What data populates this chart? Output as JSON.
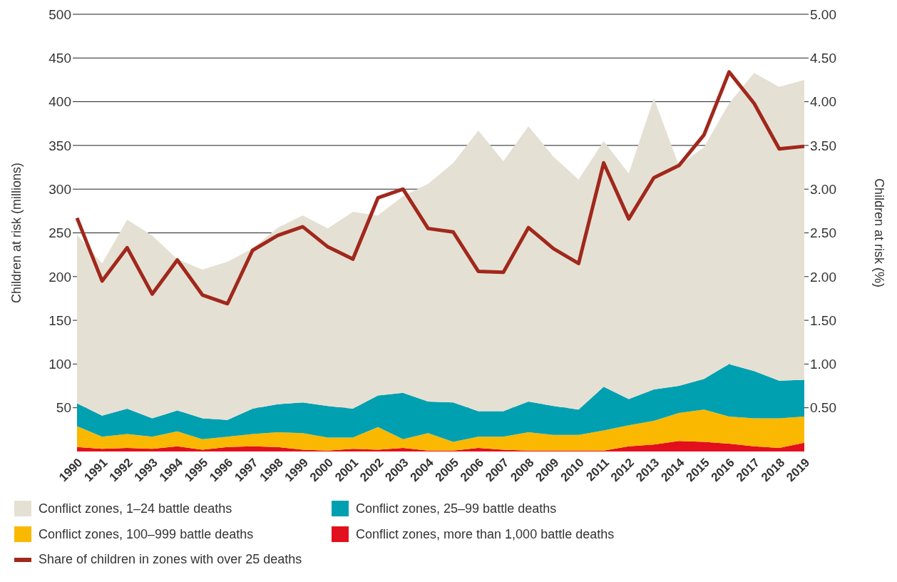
{
  "chart_data": {
    "type": "area",
    "stacked": true,
    "ylabel": "Children at risk (millions)",
    "y2label": "Children at risk (%)",
    "categories": [
      "1990",
      "1991",
      "1992",
      "1993",
      "1994",
      "1995",
      "1996",
      "1997",
      "1998",
      "1999",
      "2000",
      "2001",
      "2002",
      "2003",
      "2004",
      "2005",
      "2006",
      "2007",
      "2008",
      "2009",
      "2010",
      "2011",
      "2012",
      "2013",
      "2014",
      "2015",
      "2016",
      "2017",
      "2018",
      "2019"
    ],
    "series": [
      {
        "name": "Conflict zones, more than 1,000 battle deaths",
        "color": "#e2101c",
        "values": [
          5,
          3,
          4,
          3,
          6,
          2,
          5,
          6,
          5,
          2,
          1,
          3,
          2,
          4,
          1,
          1,
          4,
          2,
          1,
          1,
          1,
          1,
          6,
          8,
          12,
          11,
          9,
          6,
          4,
          10
        ]
      },
      {
        "name": "Conflict zones, 100–999 battle deaths",
        "color": "#fbb800",
        "values": [
          24,
          14,
          16,
          14,
          17,
          12,
          12,
          14,
          17,
          19,
          15,
          13,
          26,
          10,
          20,
          10,
          13,
          15,
          21,
          18,
          18,
          23,
          24,
          27,
          32,
          37,
          31,
          32,
          34,
          30
        ]
      },
      {
        "name": "Conflict zones, 25–99 battle deaths",
        "color": "#00a0b0",
        "values": [
          26,
          24,
          29,
          21,
          24,
          24,
          19,
          29,
          32,
          35,
          36,
          33,
          36,
          53,
          36,
          45,
          29,
          29,
          35,
          33,
          29,
          50,
          30,
          36,
          31,
          35,
          60,
          54,
          43,
          42
        ]
      },
      {
        "name": "Conflict zones, 1–24 battle deaths",
        "color": "#e5e0d4",
        "values": [
          193,
          174,
          216,
          209,
          173,
          170,
          181,
          183,
          202,
          214,
          203,
          225,
          206,
          225,
          249,
          274,
          321,
          286,
          315,
          285,
          263,
          281,
          258,
          333,
          252,
          265,
          298,
          341,
          336,
          343
        ]
      },
      {
        "name": "Share of children in zones with over 25 deaths",
        "type": "line",
        "axis": "y2",
        "color": "#a0281c",
        "values": [
          2.67,
          1.95,
          2.33,
          1.8,
          2.19,
          1.79,
          1.69,
          2.3,
          2.47,
          2.57,
          2.34,
          2.2,
          2.9,
          3.0,
          2.55,
          2.51,
          2.06,
          2.05,
          2.56,
          2.32,
          2.15,
          3.3,
          2.66,
          3.13,
          3.27,
          3.62,
          4.34,
          3.98,
          3.46,
          3.49
        ]
      }
    ],
    "ylim": [
      0,
      500
    ],
    "yticks": [
      50,
      100,
      150,
      200,
      250,
      300,
      350,
      400,
      450,
      500
    ],
    "y2lim": [
      0,
      5
    ],
    "y2ticks": [
      {
        "value": 0.5,
        "label": "0.50"
      },
      {
        "value": 1,
        "label": "1.00"
      },
      {
        "value": 1.5,
        "label": "1.50"
      },
      {
        "value": 2,
        "label": "2.00"
      },
      {
        "value": 2.5,
        "label": "2.50"
      },
      {
        "value": 3,
        "label": "3.00"
      },
      {
        "value": 3.5,
        "label": "3.50"
      },
      {
        "value": 4,
        "label": "4.00"
      },
      {
        "value": 4.5,
        "label": "4.50"
      },
      {
        "value": 5,
        "label": "5.00"
      }
    ],
    "grid": "y",
    "legend": "bottom",
    "marker": "none",
    "line_style": "solid"
  }
}
